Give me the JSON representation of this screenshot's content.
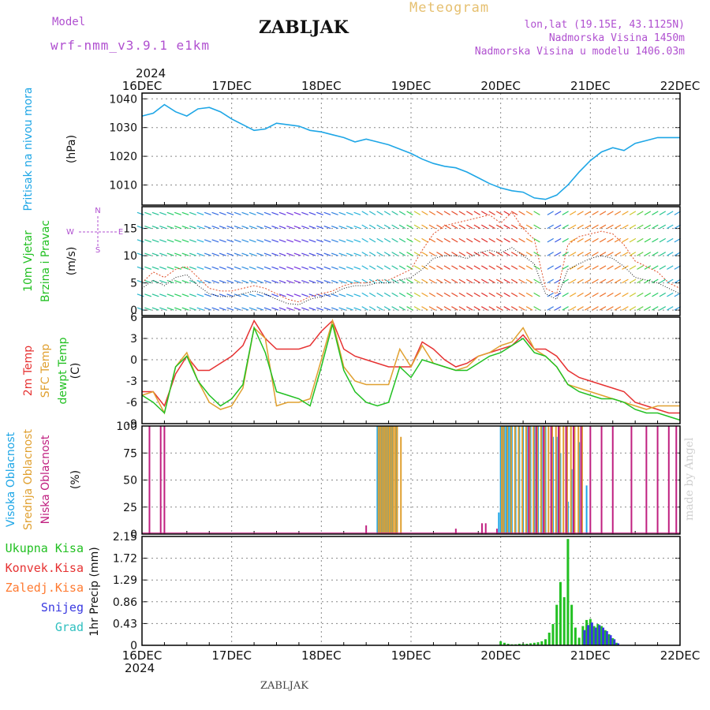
{
  "header": {
    "model_label": "Model",
    "model_name": "wrf-nmm_v3.9.1 e1km",
    "station": "ZABLJAK",
    "product": "Meteogram",
    "lonlat": "lon,lat (19.15E, 43.1125N)",
    "altitude": "Nadmorska Visina 1450m",
    "model_altitude": "Nadmorska Visina u modelu 1406.03m",
    "year": "2024",
    "footer_station": "ZABLJAK",
    "credit": "made by Angel"
  },
  "colors": {
    "pressure": "#1ea6e6",
    "temp2m": "#e63232",
    "sfc_temp": "#e0a030",
    "dewpt": "#22c022",
    "visoka": "#1ea6e6",
    "srednja": "#e0a030",
    "niska": "#c02080",
    "ukupna": "#22c022",
    "konvek": "#e63232",
    "zaledj": "#ff7a30",
    "snijeg": "#3838e0",
    "grad": "#30c0c0",
    "model": "#b050d0",
    "wind_label": "#b050d0",
    "product": "#e6c070"
  },
  "chart_data": [
    {
      "type": "line",
      "panel": "pressure",
      "ylabel_lines": [
        "Pritisak na nivou mora",
        "(hPa)"
      ],
      "ylim": [
        1003,
        1042
      ],
      "yticks": [
        1010,
        1020,
        1030,
        1040
      ],
      "xlim": [
        0,
        144
      ],
      "x_tick_labels": [
        "16DEC",
        "17DEC",
        "18DEC",
        "19DEC",
        "20DEC",
        "21DEC",
        "22DEC"
      ],
      "series": [
        {
          "key": "pressure",
          "x": [
            0,
            3,
            6,
            9,
            12,
            15,
            18,
            21,
            24,
            27,
            30,
            33,
            36,
            39,
            42,
            45,
            48,
            51,
            54,
            57,
            60,
            63,
            66,
            69,
            72,
            75,
            78,
            81,
            84,
            87,
            90,
            93,
            96,
            99,
            102,
            105,
            108,
            111,
            114,
            117,
            120,
            123,
            126,
            129,
            132,
            135,
            138,
            141,
            144
          ],
          "y": [
            1034,
            1035,
            1038,
            1035.5,
            1034,
            1036.5,
            1037,
            1035.5,
            1033,
            1031,
            1029,
            1029.5,
            1031.5,
            1031,
            1030.5,
            1029,
            1028.5,
            1027.5,
            1026.5,
            1025,
            1026,
            1025,
            1024,
            1022.5,
            1021,
            1019,
            1017.5,
            1016.5,
            1016,
            1014.5,
            1012.5,
            1010.5,
            1009,
            1008,
            1007.5,
            1005.5,
            1005,
            1006.5,
            1010,
            1014.5,
            1018.5,
            1021.5,
            1023,
            1022,
            1024.5,
            1025.5,
            1026.5,
            1026.5,
            1026.5
          ]
        }
      ]
    },
    {
      "type": "line",
      "panel": "wind",
      "ylabel_lines": [
        "10m Vjetar",
        "Brzina i Pravac",
        "(m/s)"
      ],
      "direction_legend": [
        "N",
        "E",
        "W",
        "S"
      ],
      "ylim": [
        -1,
        19
      ],
      "yticks": [
        0,
        5,
        10,
        15
      ],
      "xlim": [
        0,
        144
      ],
      "series": [
        {
          "key": "speed",
          "x": [
            0,
            3,
            6,
            9,
            12,
            15,
            18,
            21,
            24,
            27,
            30,
            33,
            36,
            39,
            42,
            45,
            48,
            51,
            54,
            57,
            60,
            63,
            66,
            69,
            72,
            75,
            78,
            81,
            84,
            87,
            90,
            93,
            96,
            99,
            102,
            105,
            108,
            111,
            114,
            117,
            120,
            123,
            126,
            129,
            132,
            135,
            138,
            141,
            144
          ],
          "y": [
            4,
            5.5,
            4.5,
            6,
            6.5,
            4.5,
            3,
            2.5,
            2.5,
            3,
            3.5,
            3,
            2,
            1.2,
            1,
            2,
            2.5,
            3,
            4,
            4.5,
            4.5,
            5,
            5,
            5.5,
            6,
            7.5,
            9.5,
            10,
            10,
            9.5,
            10.5,
            11,
            10.5,
            11.5,
            10,
            8.5,
            3,
            2,
            7.5,
            8.5,
            9.5,
            10,
            9.5,
            8,
            6,
            5.5,
            5,
            4,
            3
          ]
        },
        {
          "key": "gust",
          "x": [
            0,
            3,
            6,
            9,
            12,
            15,
            18,
            21,
            24,
            27,
            30,
            33,
            36,
            39,
            42,
            45,
            48,
            51,
            54,
            57,
            60,
            63,
            66,
            69,
            72,
            75,
            78,
            81,
            84,
            87,
            90,
            93,
            96,
            99,
            102,
            105,
            108,
            111,
            114,
            117,
            120,
            123,
            126,
            129,
            132,
            135,
            138,
            141,
            144
          ],
          "y": [
            5,
            7,
            6,
            7.5,
            8,
            6,
            4,
            3.5,
            3.5,
            4,
            4.5,
            4,
            3,
            2,
            1.5,
            2.5,
            3,
            3.5,
            4.5,
            5,
            5,
            5.5,
            5.5,
            6.5,
            7.5,
            11,
            14,
            15.5,
            16,
            16.5,
            17,
            17.5,
            16,
            18,
            15,
            13,
            4,
            3,
            12,
            13.5,
            14,
            14.5,
            14,
            12,
            9,
            8,
            7,
            5,
            4
          ]
        }
      ]
    },
    {
      "type": "line",
      "panel": "temperature",
      "ylabel_lines": [
        "2m Temp",
        "SFC Temp",
        "dewpt Temp",
        "(C)"
      ],
      "ylim": [
        -9,
        6
      ],
      "yticks": [
        -9,
        -6,
        -3,
        0,
        3,
        6
      ],
      "xlim": [
        0,
        144
      ],
      "series": [
        {
          "key": "temp2m",
          "name": "2m Temp",
          "x": [
            0,
            3,
            6,
            9,
            12,
            15,
            18,
            21,
            24,
            27,
            30,
            33,
            36,
            39,
            42,
            45,
            48,
            51,
            54,
            57,
            60,
            63,
            66,
            69,
            72,
            75,
            78,
            81,
            84,
            87,
            90,
            93,
            96,
            99,
            102,
            105,
            108,
            111,
            114,
            117,
            120,
            123,
            126,
            129,
            132,
            135,
            138,
            141,
            144
          ],
          "y": [
            -4.5,
            -4.5,
            -6.5,
            -2,
            0.5,
            -1.5,
            -1.5,
            -0.5,
            0.5,
            2,
            5.5,
            3,
            1.5,
            1.5,
            1.5,
            2,
            4,
            5.5,
            1.5,
            0.5,
            0,
            -0.5,
            -1,
            -1,
            -1,
            2.5,
            1.5,
            0,
            -1,
            -0.5,
            0.5,
            1,
            1.5,
            2,
            3.5,
            1.5,
            1.5,
            0.5,
            -1.5,
            -2.5,
            -3,
            -3.5,
            -4,
            -4.5,
            -6,
            -6.5,
            -7,
            -7.5,
            -7.5
          ]
        },
        {
          "key": "sfc_temp",
          "name": "SFC Temp",
          "x": [
            0,
            3,
            6,
            9,
            12,
            15,
            18,
            21,
            24,
            27,
            30,
            33,
            36,
            39,
            42,
            45,
            48,
            51,
            54,
            57,
            60,
            63,
            66,
            69,
            72,
            75,
            78,
            81,
            84,
            87,
            90,
            93,
            96,
            99,
            102,
            105,
            108,
            111,
            114,
            117,
            120,
            123,
            126,
            129,
            132,
            135,
            138,
            141,
            144
          ],
          "y": [
            -5,
            -4.5,
            -7.5,
            -1,
            1,
            -3,
            -6,
            -7,
            -6.5,
            -4,
            4.5,
            3,
            -6.5,
            -6,
            -6,
            -5.5,
            0,
            5.5,
            -1,
            -3,
            -3.5,
            -3.5,
            -3.5,
            1.5,
            -1,
            2,
            -0.5,
            -1,
            -1.5,
            -1,
            0.5,
            1,
            2,
            2.5,
            4.5,
            1.5,
            0.5,
            -1,
            -3.5,
            -4,
            -4.5,
            -5,
            -5.5,
            -6,
            -6.5,
            -7,
            -6.5,
            -6.5,
            -6.5
          ]
        },
        {
          "key": "dewpt",
          "name": "dewpt Temp",
          "x": [
            0,
            3,
            6,
            9,
            12,
            15,
            18,
            21,
            24,
            27,
            30,
            33,
            36,
            39,
            42,
            45,
            48,
            51,
            54,
            57,
            60,
            63,
            66,
            69,
            72,
            75,
            78,
            81,
            84,
            87,
            90,
            93,
            96,
            99,
            102,
            105,
            108,
            111,
            114,
            117,
            120,
            123,
            126,
            129,
            132,
            135,
            138,
            141,
            144
          ],
          "y": [
            -5,
            -6,
            -7.5,
            -1,
            0.5,
            -3,
            -5,
            -6.5,
            -5.5,
            -3.5,
            4.5,
            1,
            -4.5,
            -5,
            -5.5,
            -6.5,
            -1,
            5,
            -1.5,
            -4.5,
            -6,
            -6.5,
            -6,
            -1,
            -2.5,
            0,
            -0.5,
            -1,
            -1.5,
            -1.5,
            -0.5,
            0.5,
            1,
            2,
            3,
            1,
            0.5,
            -1,
            -3.5,
            -4.5,
            -5,
            -5.5,
            -5.5,
            -6,
            -7,
            -7.5,
            -7.5,
            -8,
            -8.5
          ]
        }
      ]
    },
    {
      "type": "bar",
      "panel": "cloud",
      "ylabel_lines": [
        "Visoka Oblacnost",
        "Srednja Oblacnost",
        "Niska Oblacnost",
        "(%)"
      ],
      "ylim": [
        0,
        100
      ],
      "yticks": [
        0,
        25,
        50,
        75,
        100
      ],
      "xlim": [
        0,
        144
      ],
      "series": [
        {
          "key": "visoka",
          "name": "Visoka Oblacnost",
          "x": [
            63,
            63.5,
            64,
            64.5,
            65,
            65.5,
            66,
            66.5,
            67,
            68,
            95.5,
            96,
            96.5,
            97,
            97.5,
            98,
            98.5,
            99,
            100,
            101,
            102,
            103,
            104,
            105,
            106,
            107,
            108,
            110,
            111,
            112,
            114,
            115,
            117,
            119
          ],
          "y": [
            100,
            100,
            100,
            100,
            100,
            100,
            100,
            100,
            100,
            100,
            20,
            100,
            100,
            100,
            100,
            100,
            100,
            100,
            100,
            100,
            100,
            100,
            100,
            100,
            100,
            100,
            100,
            90,
            90,
            75,
            30,
            60,
            85,
            45
          ]
        },
        {
          "key": "srednja",
          "name": "Srednja Oblacnost",
          "x": [
            63.3,
            63.8,
            64.3,
            64.8,
            65.3,
            65.8,
            66.3,
            66.8,
            67.3,
            67.8,
            68.3,
            69.3,
            96.3,
            96.8,
            97.8,
            98.8,
            99.8,
            100.8,
            101.8,
            102.8,
            103.8,
            104.8,
            105.8,
            106.8,
            107.8,
            108.8,
            109.8,
            110.8,
            111.8,
            112.8,
            113.8,
            114.8,
            115.8,
            116.8,
            117.8
          ],
          "y": [
            100,
            100,
            100,
            100,
            100,
            100,
            100,
            100,
            100,
            100,
            100,
            90,
            100,
            100,
            100,
            100,
            100,
            100,
            100,
            100,
            100,
            100,
            100,
            100,
            100,
            100,
            100,
            100,
            100,
            100,
            100,
            100,
            100,
            100,
            100
          ]
        },
        {
          "key": "niska",
          "name": "Niska Oblacnost",
          "x": [
            2,
            5,
            6,
            60,
            84,
            91,
            92,
            95,
            103.5,
            105.5,
            107.5,
            109.5,
            111.5,
            113.5,
            115.5,
            117.5,
            120,
            123,
            126,
            131,
            135,
            138,
            141,
            143
          ],
          "y": [
            100,
            100,
            100,
            8,
            5,
            10,
            10,
            5,
            100,
            100,
            100,
            100,
            100,
            100,
            100,
            100,
            100,
            100,
            100,
            100,
            100,
            100,
            100,
            100
          ]
        }
      ]
    },
    {
      "type": "bar",
      "panel": "precipitation",
      "ylabel_lines": [
        "1hr Precip (mm)"
      ],
      "legend": [
        "Ukupna Kisa",
        "Konvek.Kisa",
        "Zaledj.Kisa",
        "Snijeg",
        "Grad"
      ],
      "ylim": [
        0,
        2.15
      ],
      "yticks": [
        0,
        0.43,
        0.86,
        1.29,
        1.72,
        2.15
      ],
      "ytick_labels": [
        "0",
        "0.43",
        "0.86",
        "1.29",
        "1.72",
        "2.15"
      ],
      "xlim": [
        0,
        144
      ],
      "series": [
        {
          "key": "ukupna",
          "name": "Ukupna Kisa",
          "x": [
            96,
            97,
            98,
            99,
            100,
            101,
            102,
            103,
            104,
            105,
            106,
            107,
            108,
            109,
            110,
            111,
            112,
            113,
            114,
            115,
            116,
            117,
            118,
            119,
            120,
            121,
            122,
            123,
            124,
            125,
            126,
            127
          ],
          "y": [
            0.08,
            0.05,
            0.03,
            0.02,
            0.02,
            0.03,
            0.03,
            0.03,
            0.04,
            0.05,
            0.06,
            0.08,
            0.12,
            0.25,
            0.42,
            0.8,
            1.25,
            0.95,
            2.1,
            0.8,
            0.35,
            0.15,
            0.38,
            0.5,
            0.52,
            0.38,
            0.42,
            0.38,
            0.3,
            0.22,
            0.14,
            0.05
          ]
        },
        {
          "key": "snijeg",
          "name": "Snijeg",
          "x": [
            118,
            119,
            120,
            121,
            122,
            123,
            124,
            125,
            126,
            127
          ],
          "y": [
            0.3,
            0.4,
            0.45,
            0.35,
            0.4,
            0.35,
            0.28,
            0.2,
            0.12,
            0.04
          ]
        }
      ]
    }
  ]
}
